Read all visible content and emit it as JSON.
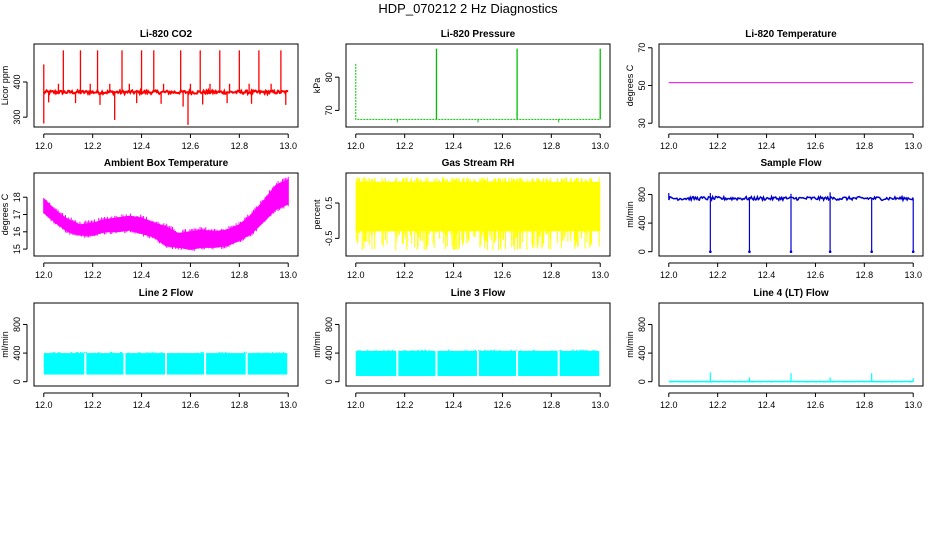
{
  "figure_title": "HDP_070212  2 Hz Diagnostics",
  "chart_data": [
    {
      "type": "line",
      "title": "Li-820 CO2",
      "xlabel": "",
      "ylabel": "Licor ppm",
      "x_range": [
        12.0,
        13.0
      ],
      "xlim": [
        11.96,
        13.04
      ],
      "xticks": [
        "12.0",
        "12.2",
        "12.4",
        "12.6",
        "12.8",
        "13.0"
      ],
      "ylim": [
        272,
        508
      ],
      "yticks": [
        300,
        400
      ],
      "color": "#ff0000",
      "style": "spiky",
      "baseline": 370,
      "band": [
        366,
        376
      ],
      "spikes_up": [
        [
          12.0,
          450
        ],
        [
          12.08,
          490
        ],
        [
          12.15,
          490
        ],
        [
          12.22,
          490
        ],
        [
          12.32,
          490
        ],
        [
          12.4,
          490
        ],
        [
          12.45,
          490
        ],
        [
          12.56,
          490
        ],
        [
          12.64,
          490
        ],
        [
          12.72,
          490
        ],
        [
          12.8,
          490
        ],
        [
          12.88,
          490
        ],
        [
          12.97,
          490
        ],
        [
          12.06,
          395
        ],
        [
          12.19,
          395
        ],
        [
          12.27,
          395
        ],
        [
          12.35,
          395
        ],
        [
          12.49,
          395
        ],
        [
          12.6,
          395
        ],
        [
          12.68,
          395
        ],
        [
          12.76,
          395
        ],
        [
          12.84,
          395
        ],
        [
          12.93,
          395
        ]
      ],
      "spikes_down": [
        [
          12.0,
          282
        ],
        [
          12.02,
          342
        ],
        [
          12.13,
          340
        ],
        [
          12.23,
          335
        ],
        [
          12.29,
          292
        ],
        [
          12.38,
          340
        ],
        [
          12.48,
          338
        ],
        [
          12.57,
          330
        ],
        [
          12.59,
          278
        ],
        [
          12.65,
          336
        ],
        [
          12.75,
          340
        ],
        [
          12.85,
          338
        ],
        [
          12.99,
          335
        ]
      ]
    },
    {
      "type": "line",
      "title": "Li-820 Pressure",
      "xlabel": "",
      "ylabel": "kPa",
      "x_range": [
        12.0,
        13.0
      ],
      "xlim": [
        11.96,
        13.04
      ],
      "xticks": [
        "12.0",
        "12.2",
        "12.4",
        "12.6",
        "12.8",
        "13.0"
      ],
      "ylim": [
        65,
        90
      ],
      "yticks": [
        70,
        80
      ],
      "color": "#00c000",
      "style": "pressure",
      "start_value": 84,
      "baseline": 67.3,
      "spikes_up": [
        [
          12.33,
          88.6
        ],
        [
          12.66,
          88.6
        ],
        [
          13.0,
          88.6
        ]
      ],
      "dips": [
        12.17,
        12.5,
        12.83
      ]
    },
    {
      "type": "line",
      "title": "Li-820 Temperature",
      "xlabel": "",
      "ylabel": "degrees C",
      "x_range": [
        12.0,
        13.0
      ],
      "xlim": [
        11.96,
        13.04
      ],
      "xticks": [
        "12.0",
        "12.2",
        "12.4",
        "12.6",
        "12.8",
        "13.0"
      ],
      "ylim": [
        28,
        72
      ],
      "yticks": [
        30,
        50,
        70
      ],
      "color": "#ff00ff",
      "style": "flat",
      "baseline": 51.5
    },
    {
      "type": "area",
      "title": "Ambient Box Temperature",
      "xlabel": "",
      "ylabel": "degrees C",
      "x_range": [
        12.0,
        13.0
      ],
      "xlim": [
        11.96,
        13.04
      ],
      "xticks": [
        "12.0",
        "12.2",
        "12.4",
        "12.6",
        "12.8",
        "13.0"
      ],
      "ylim": [
        14.6,
        19.4
      ],
      "yticks": [
        15,
        16,
        17,
        18
      ],
      "ytick_labels": [
        "15",
        "16",
        "17",
        "18"
      ],
      "color": "#ff00ff",
      "style": "band",
      "x": [
        12.0,
        12.05,
        12.1,
        12.15,
        12.2,
        12.25,
        12.3,
        12.35,
        12.4,
        12.45,
        12.5,
        12.55,
        12.6,
        12.65,
        12.7,
        12.75,
        12.8,
        12.85,
        12.9,
        12.95,
        13.0
      ],
      "upper": [
        17.9,
        17.2,
        16.7,
        16.4,
        16.5,
        16.7,
        16.8,
        16.9,
        16.8,
        16.5,
        16.3,
        15.9,
        16.0,
        16.1,
        16.0,
        16.1,
        16.4,
        17.0,
        17.8,
        18.7,
        19.0
      ],
      "lower": [
        17.1,
        16.5,
        16.0,
        15.8,
        15.8,
        16.0,
        16.0,
        16.1,
        15.9,
        15.7,
        15.2,
        15.1,
        15.0,
        15.1,
        15.1,
        15.2,
        15.5,
        15.9,
        16.6,
        17.3,
        17.6
      ]
    },
    {
      "type": "area",
      "title": "Gas Stream RH",
      "xlabel": "",
      "ylabel": "percent",
      "x_range": [
        12.0,
        13.0
      ],
      "xlim": [
        11.96,
        13.04
      ],
      "xticks": [
        "12.0",
        "12.2",
        "12.4",
        "12.6",
        "12.8",
        "13.0"
      ],
      "ylim": [
        -1.0,
        1.35
      ],
      "yticks": [
        -0.5,
        0.5
      ],
      "ytick_labels": [
        "-0.5",
        "0.5"
      ],
      "color": "#ffff00",
      "style": "noise",
      "band": [
        -0.3,
        1.1
      ],
      "extreme_low": -0.85,
      "extreme_high": 1.25
    },
    {
      "type": "line",
      "title": "Sample Flow",
      "xlabel": "",
      "ylabel": "ml/min",
      "x_range": [
        12.0,
        13.0
      ],
      "xlim": [
        11.96,
        13.04
      ],
      "xticks": [
        "12.0",
        "12.2",
        "12.4",
        "12.6",
        "12.8",
        "13.0"
      ],
      "ylim": [
        -60,
        1100
      ],
      "yticks": [
        0,
        400,
        800
      ],
      "color": "#0000cc",
      "style": "flow",
      "baseline": 740,
      "band": [
        720,
        770
      ],
      "dropouts": [
        12.17,
        12.33,
        12.5,
        12.66,
        12.83,
        13.0
      ],
      "dropout_value": 0,
      "peaks": [
        [
          12.0,
          820
        ],
        [
          12.17,
          820
        ],
        [
          12.5,
          810
        ],
        [
          12.66,
          830
        ]
      ]
    },
    {
      "type": "area",
      "title": "Line 2 Flow",
      "xlabel": "",
      "ylabel": "ml/min",
      "x_range": [
        12.0,
        13.0
      ],
      "xlim": [
        11.96,
        13.04
      ],
      "xticks": [
        "12.0",
        "12.2",
        "12.4",
        "12.6",
        "12.8",
        "13.0"
      ],
      "ylim": [
        -60,
        1100
      ],
      "yticks": [
        0,
        400,
        800
      ],
      "color": "#00ffff",
      "style": "block",
      "band": [
        100,
        400
      ],
      "gaps": [
        12.17,
        12.33,
        12.5,
        12.66,
        12.83,
        13.0
      ]
    },
    {
      "type": "area",
      "title": "Line 3 Flow",
      "xlabel": "",
      "ylabel": "ml/min",
      "x_range": [
        12.0,
        13.0
      ],
      "xlim": [
        11.96,
        13.04
      ],
      "xticks": [
        "12.0",
        "12.2",
        "12.4",
        "12.6",
        "12.8",
        "13.0"
      ],
      "ylim": [
        -60,
        1100
      ],
      "yticks": [
        0,
        400,
        800
      ],
      "color": "#00ffff",
      "style": "block",
      "band": [
        80,
        430
      ],
      "gaps": [
        12.17,
        12.33,
        12.5,
        12.66,
        12.83,
        13.0
      ]
    },
    {
      "type": "line",
      "title": "Line 4 (LT) Flow",
      "xlabel": "",
      "ylabel": "ml/min",
      "x_range": [
        12.0,
        13.0
      ],
      "xlim": [
        11.96,
        13.04
      ],
      "xticks": [
        "12.0",
        "12.2",
        "12.4",
        "12.6",
        "12.8",
        "13.0"
      ],
      "ylim": [
        -60,
        1100
      ],
      "yticks": [
        0,
        400,
        800
      ],
      "color": "#00ffff",
      "style": "flow",
      "baseline": 0,
      "band": [
        0,
        4
      ],
      "spikes_up": [
        [
          12.17,
          130
        ],
        [
          12.33,
          60
        ],
        [
          12.5,
          120
        ],
        [
          12.66,
          60
        ],
        [
          12.83,
          120
        ],
        [
          13.0,
          50
        ]
      ]
    }
  ]
}
